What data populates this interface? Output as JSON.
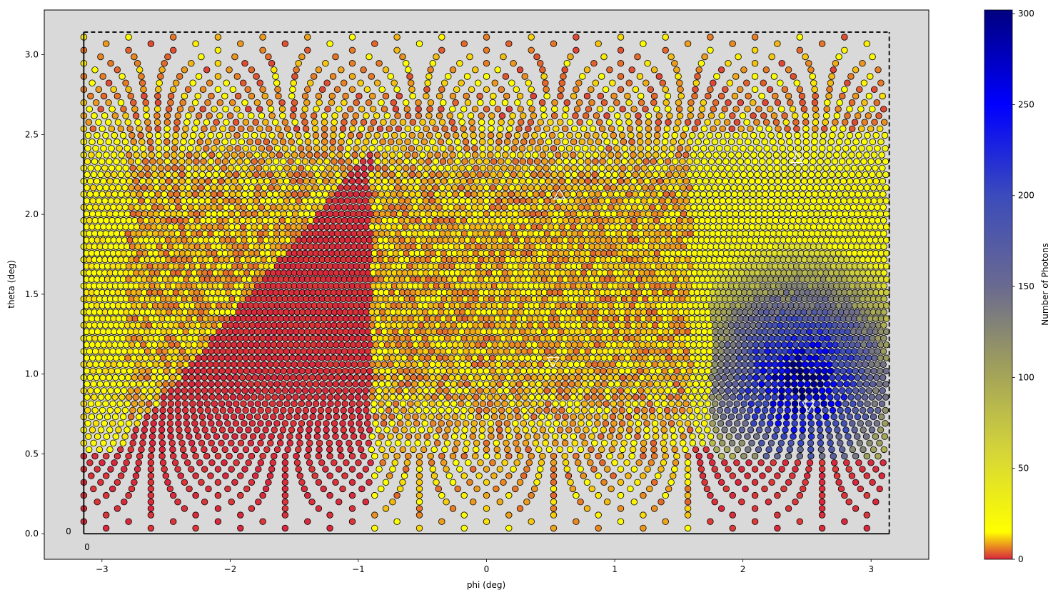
{
  "chart_data": {
    "type": "scatter",
    "title": "",
    "xlabel": "phi (deg)",
    "ylabel": "theta (deg)",
    "xlim": [
      -3.45,
      3.45
    ],
    "ylim": [
      -0.16,
      3.28
    ],
    "xticks": [
      -3,
      -2,
      -1,
      0,
      1,
      2,
      3
    ],
    "yticks": [
      0.0,
      0.5,
      1.0,
      1.5,
      2.0,
      2.5,
      3.0
    ],
    "xtick_labels": [
      "−3",
      "−2",
      "−1",
      "0",
      "1",
      "2",
      "3"
    ],
    "ytick_labels": [
      "0.0",
      "0.5",
      "1.0",
      "1.5",
      "2.0",
      "2.5",
      "3.0"
    ],
    "grid": false,
    "plot_background": "#d9d9d9",
    "marker_edge_color": "#000000",
    "boundary": {
      "phi": [
        -3.14159,
        3.14159
      ],
      "theta": [
        0,
        3.14159
      ],
      "solid_edges": [
        "bottom",
        "left"
      ],
      "dashed_edges": [
        "top",
        "right"
      ]
    },
    "corner_labels": [
      {
        "text": "0",
        "near": "bottom-left outside, left"
      },
      {
        "text": "0",
        "near": "bottom-left outside, below"
      }
    ],
    "regions": [
      {
        "description": "high photon cluster",
        "phi_range": [
          1.75,
          3.1
        ],
        "theta_range": [
          0.5,
          2.3
        ],
        "peak_value": 300
      },
      {
        "description": "near-zero region",
        "phi_range": [
          -3.1,
          -0.9
        ],
        "theta_range": [
          0.1,
          2.6
        ],
        "value": 0
      },
      {
        "description": "moderate region",
        "phi_range": [
          -0.9,
          1.6
        ],
        "theta_range": [
          0.3,
          2.7
        ],
        "value": 8
      }
    ],
    "markers": [
      {
        "shape": "triangle-up",
        "phi": 0.57,
        "theta": 2.12,
        "color": "#ffffff"
      },
      {
        "shape": "triangle-down",
        "phi": 0.52,
        "theta": 1.08,
        "color": "#ffffff"
      },
      {
        "shape": "triangle-up",
        "phi": 2.42,
        "theta": 2.35,
        "color": "#ffffff"
      },
      {
        "shape": "triangle-down",
        "phi": 2.51,
        "theta": 0.8,
        "color": "#ffffff"
      }
    ],
    "colorbar": {
      "label": "Number of Photons",
      "min": 0,
      "max": 302,
      "ticks": [
        0,
        50,
        100,
        150,
        200,
        250,
        300
      ],
      "tick_labels": [
        "0",
        "50",
        "100",
        "150",
        "200",
        "250",
        "300"
      ],
      "stops": [
        {
          "value": 0,
          "color": "#d7263d"
        },
        {
          "value": 15,
          "color": "#ffff00"
        },
        {
          "value": 60,
          "color": "#d4d43a"
        },
        {
          "value": 110,
          "color": "#9a9a60"
        },
        {
          "value": 150,
          "color": "#6a6a90"
        },
        {
          "value": 200,
          "color": "#3b4bbb"
        },
        {
          "value": 250,
          "color": "#0000ff"
        },
        {
          "value": 302,
          "color": "#000080"
        }
      ]
    }
  }
}
